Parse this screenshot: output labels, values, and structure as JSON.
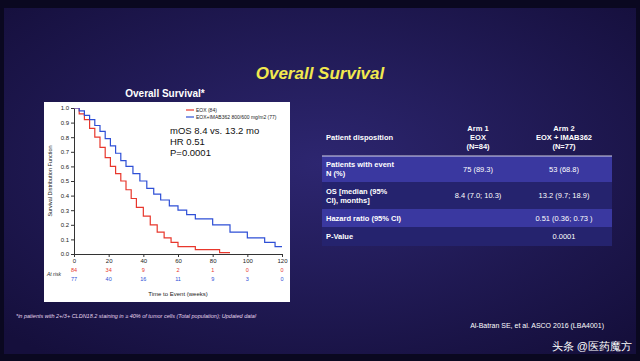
{
  "slide": {
    "title": "Overall Survival",
    "footnote": "*in patients with 2+/3+ CLDN18.2 staining in ≥ 40% of tumor cells (Total population); Updated data!",
    "citation": "Al-Batran SE, et al. ASCO 2016 (LBA4001)",
    "watermark": "头条 @医药魔方"
  },
  "chart_data": {
    "type": "step",
    "title": "Overall Survival*",
    "x_label": "Time to Event (weeks)",
    "y_label": "Survival Distribution Function",
    "xlim": [
      0,
      120
    ],
    "xticks": [
      0,
      20,
      40,
      60,
      80,
      100,
      120
    ],
    "ylim": [
      0,
      1
    ],
    "yticks": [
      {
        "value": 0,
        "label": "0.0"
      },
      0.1,
      0.2,
      0.3,
      0.4,
      0.5,
      0.6,
      0.7,
      0.8,
      0.9,
      {
        "value": 1,
        "label": "1.0"
      }
    ],
    "legend": "upper right",
    "series": [
      {
        "name": "EOX (84)",
        "color": "#e8372c",
        "x": [
          0,
          3,
          6,
          9,
          12,
          15,
          18,
          21,
          24,
          27,
          30,
          33,
          36,
          40,
          44,
          48,
          52,
          56,
          60,
          70,
          84,
          90
        ],
        "values": [
          1.0,
          0.96,
          0.92,
          0.86,
          0.8,
          0.73,
          0.66,
          0.6,
          0.55,
          0.5,
          0.44,
          0.38,
          0.32,
          0.26,
          0.2,
          0.15,
          0.11,
          0.08,
          0.05,
          0.03,
          0.01,
          0.01
        ]
      },
      {
        "name": "EOX+IMAB362 800/600 mg/m2 (77)",
        "color": "#2e4fd6",
        "x": [
          0,
          3,
          6,
          9,
          12,
          15,
          18,
          21,
          24,
          27,
          30,
          34,
          38,
          42,
          46,
          50,
          55,
          60,
          65,
          70,
          80,
          90,
          100,
          110,
          116,
          120
        ],
        "values": [
          1.0,
          0.98,
          0.95,
          0.92,
          0.88,
          0.84,
          0.79,
          0.74,
          0.69,
          0.64,
          0.6,
          0.55,
          0.5,
          0.45,
          0.41,
          0.37,
          0.33,
          0.3,
          0.27,
          0.24,
          0.2,
          0.15,
          0.11,
          0.08,
          0.05,
          0.05
        ]
      }
    ],
    "annotations": [
      "mOS 8.4 vs. 13.2 mo",
      "HR 0.51",
      "P=0.0001"
    ],
    "at_risk": {
      "label": "At risk",
      "rows": [
        [
          84,
          34,
          9,
          2,
          1,
          0,
          0
        ],
        [
          77,
          40,
          16,
          11,
          9,
          3,
          0
        ]
      ]
    }
  },
  "table": {
    "header": [
      [
        "Patient disposition"
      ],
      [
        "Arm 1",
        "EOX",
        "(N=84)"
      ],
      [
        "Arm 2",
        "EOX + IMAB362",
        "(N=77)"
      ]
    ],
    "rows": [
      [
        [
          "Patients with event",
          "N (%)"
        ],
        [
          "75 (89.3)"
        ],
        [
          "53 (68.8)"
        ]
      ],
      [
        [
          "OS [median (95%",
          "CI), months]"
        ],
        [
          "8.4 (7.0; 10.3)"
        ],
        [
          "13.2 (9.7; 18.9)"
        ]
      ],
      [
        [
          "Hazard ratio (95% CI)"
        ],
        null,
        [
          "0.51 (0.36; 0.73 )"
        ]
      ],
      [
        [
          "P-Value"
        ],
        null,
        [
          "0.0001"
        ]
      ]
    ]
  }
}
